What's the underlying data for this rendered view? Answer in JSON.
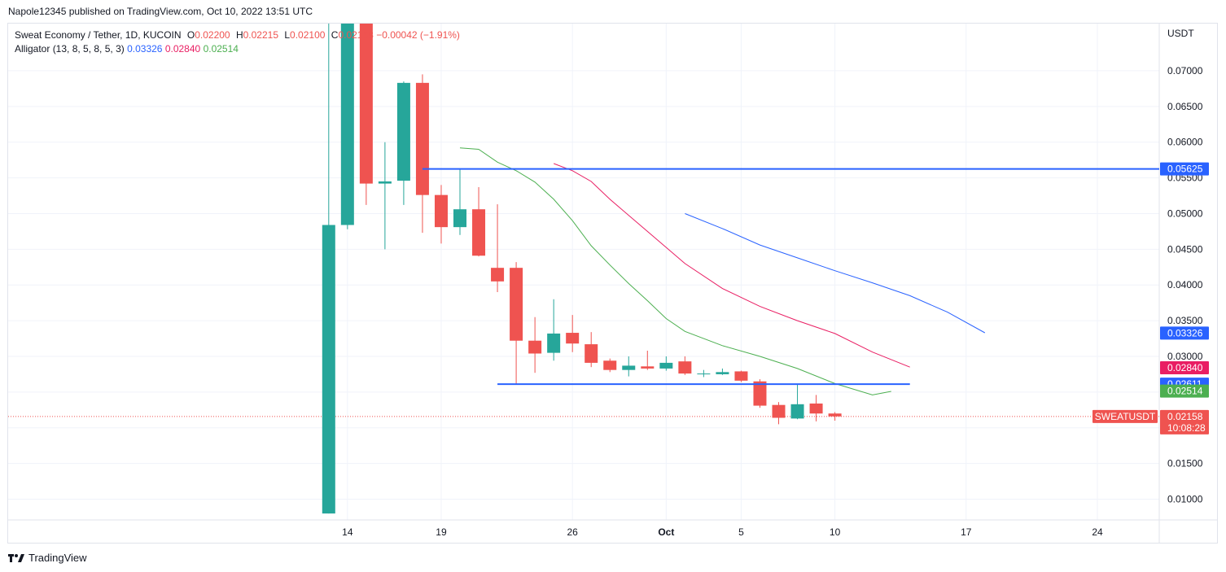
{
  "header": {
    "published": "Napole12345 published on TradingView.com, Oct 10, 2022 13:51 UTC"
  },
  "legend": {
    "symbol": "Sweat Economy / Tether, 1D, KUCOIN",
    "o_label": "O",
    "o_value": "0.02200",
    "h_label": "H",
    "h_value": "0.02215",
    "l_label": "L",
    "l_value": "0.02100",
    "c_label": "C",
    "c_value": "0.02158",
    "change": "−0.00042 (−1.91%)",
    "indicator": "Alligator (13, 8, 5, 8, 5, 3)",
    "jaw_value": "0.03326",
    "teeth_value": "0.02840",
    "lips_value": "0.02514"
  },
  "footer": {
    "brand": "TradingView"
  },
  "colors": {
    "up": "#26a69a",
    "down": "#ef5350",
    "jaw": "#2962ff",
    "teeth": "#e91e63",
    "lips": "#4caf50",
    "hline": "#2962ff",
    "grid": "#f0f3fa",
    "axis_text": "#131722"
  },
  "chart_data": {
    "type": "candlestick",
    "currency_label": "USDT",
    "ylim": [
      0.0071,
      0.0766
    ],
    "y_ticks": [
      "0.07000",
      "0.06500",
      "0.06000",
      "0.05500",
      "0.05000",
      "0.04500",
      "0.04000",
      "0.03500",
      "0.03000",
      "0.02500",
      "0.02000",
      "0.01500",
      "0.01000"
    ],
    "x_ticks": [
      {
        "day": 14,
        "label": "14"
      },
      {
        "day": 19,
        "label": "19"
      },
      {
        "day": 26,
        "label": "26"
      },
      {
        "day": 31,
        "label": "Oct",
        "bold": true
      },
      {
        "day": 35,
        "label": "5"
      },
      {
        "day": 40,
        "label": "10"
      },
      {
        "day": 47,
        "label": "17"
      },
      {
        "day": 54,
        "label": "24"
      }
    ],
    "xlim_days": [
      -4.1,
      57.3
    ],
    "candles": [
      {
        "d": 13,
        "o": 0.008,
        "h": 0.0785,
        "l": 0.008,
        "c": 0.0484
      },
      {
        "d": 14,
        "o": 0.0484,
        "h": 0.0785,
        "l": 0.0478,
        "c": 0.0785
      },
      {
        "d": 15,
        "o": 0.0785,
        "h": 0.0785,
        "l": 0.0512,
        "c": 0.0542
      },
      {
        "d": 16,
        "o": 0.0542,
        "h": 0.06,
        "l": 0.045,
        "c": 0.0545
      },
      {
        "d": 17,
        "o": 0.0546,
        "h": 0.0685,
        "l": 0.0512,
        "c": 0.0683
      },
      {
        "d": 18,
        "o": 0.0683,
        "h": 0.0695,
        "l": 0.0473,
        "c": 0.0526
      },
      {
        "d": 19,
        "o": 0.0526,
        "h": 0.054,
        "l": 0.0458,
        "c": 0.0481
      },
      {
        "d": 20,
        "o": 0.0481,
        "h": 0.0563,
        "l": 0.047,
        "c": 0.0506
      },
      {
        "d": 21,
        "o": 0.0506,
        "h": 0.0537,
        "l": 0.044,
        "c": 0.0441
      },
      {
        "d": 22,
        "o": 0.0424,
        "h": 0.0513,
        "l": 0.039,
        "c": 0.0405
      },
      {
        "d": 23,
        "o": 0.0424,
        "h": 0.0432,
        "l": 0.0261,
        "c": 0.0322
      },
      {
        "d": 24,
        "o": 0.0322,
        "h": 0.0355,
        "l": 0.0277,
        "c": 0.0304
      },
      {
        "d": 25,
        "o": 0.0305,
        "h": 0.038,
        "l": 0.0294,
        "c": 0.0332
      },
      {
        "d": 26,
        "o": 0.0333,
        "h": 0.0358,
        "l": 0.0306,
        "c": 0.0318
      },
      {
        "d": 27,
        "o": 0.0317,
        "h": 0.0334,
        "l": 0.0285,
        "c": 0.0291
      },
      {
        "d": 28,
        "o": 0.0294,
        "h": 0.0297,
        "l": 0.0278,
        "c": 0.0281
      },
      {
        "d": 29,
        "o": 0.0281,
        "h": 0.03,
        "l": 0.0272,
        "c": 0.0287
      },
      {
        "d": 30,
        "o": 0.0286,
        "h": 0.0308,
        "l": 0.0281,
        "c": 0.0283
      },
      {
        "d": 31,
        "o": 0.0283,
        "h": 0.03,
        "l": 0.028,
        "c": 0.0291
      },
      {
        "d": 32,
        "o": 0.0293,
        "h": 0.03,
        "l": 0.0274,
        "c": 0.0276
      },
      {
        "d": 33,
        "o": 0.0276,
        "h": 0.0281,
        "l": 0.0271,
        "c": 0.0276
      },
      {
        "d": 34,
        "o": 0.0275,
        "h": 0.0283,
        "l": 0.0274,
        "c": 0.0278
      },
      {
        "d": 35,
        "o": 0.0279,
        "h": 0.028,
        "l": 0.0264,
        "c": 0.0266
      },
      {
        "d": 36,
        "o": 0.0265,
        "h": 0.0268,
        "l": 0.0228,
        "c": 0.0231
      },
      {
        "d": 37,
        "o": 0.0232,
        "h": 0.0236,
        "l": 0.0205,
        "c": 0.0214
      },
      {
        "d": 38,
        "o": 0.0213,
        "h": 0.0261,
        "l": 0.0212,
        "c": 0.0233
      },
      {
        "d": 39,
        "o": 0.0234,
        "h": 0.0246,
        "l": 0.0209,
        "c": 0.022
      },
      {
        "d": 40,
        "o": 0.022,
        "h": 0.0222,
        "l": 0.021,
        "c": 0.0216
      }
    ],
    "series": [
      {
        "key": "jaw",
        "color": "#2962ff",
        "x": [
          32,
          34,
          36,
          38,
          40,
          42,
          44,
          46,
          48
        ],
        "y": [
          0.05,
          0.0479,
          0.0456,
          0.0438,
          0.042,
          0.0403,
          0.0385,
          0.0362,
          0.0333
        ]
      },
      {
        "key": "teeth",
        "color": "#e91e63",
        "x": [
          25,
          26,
          27,
          28,
          30,
          32,
          34,
          36,
          38,
          40,
          42,
          44
        ],
        "y": [
          0.057,
          0.056,
          0.0545,
          0.052,
          0.0475,
          0.043,
          0.0395,
          0.037,
          0.035,
          0.0332,
          0.0306,
          0.0285
        ]
      },
      {
        "key": "lips",
        "color": "#4caf50",
        "x": [
          20,
          21,
          22,
          23,
          24,
          25,
          26,
          27,
          28,
          29,
          30,
          31,
          32,
          34,
          36,
          38,
          40,
          42,
          43
        ],
        "y": [
          0.0592,
          0.059,
          0.0572,
          0.056,
          0.0544,
          0.052,
          0.049,
          0.0455,
          0.0428,
          0.0402,
          0.0378,
          0.0353,
          0.0335,
          0.0315,
          0.03,
          0.0283,
          0.0262,
          0.0246,
          0.0251
        ]
      }
    ],
    "hlines": [
      {
        "y": 0.05625,
        "x_start": 18,
        "label": "0.05625"
      },
      {
        "y": 0.02611,
        "x_start": 22,
        "x_end": 44,
        "label": "0.02611"
      }
    ],
    "last_price": {
      "y": 0.02158,
      "label": "0.02158",
      "countdown": "10:08:28",
      "symbol_tag": "SWEATUSDT"
    },
    "price_tags": [
      {
        "y": 0.03326,
        "label": "0.03326",
        "color": "#2962ff"
      },
      {
        "y": 0.0284,
        "label": "0.02840",
        "color": "#e91e63"
      },
      {
        "y": 0.02611,
        "label": "0.02611",
        "color": "#2962ff"
      },
      {
        "y": 0.02514,
        "label": "0.02514",
        "color": "#4caf50"
      }
    ]
  }
}
